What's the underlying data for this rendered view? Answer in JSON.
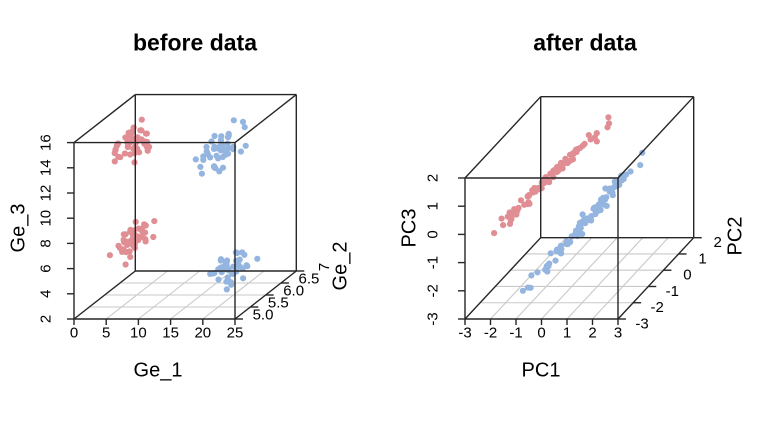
{
  "page": {
    "background": "#ffffff"
  },
  "style": {
    "point_color_group1": "#E08E94",
    "point_color_group2": "#94B5DF",
    "box_color": "#262626",
    "grid_color": "#C9C9C9",
    "text_color": "#000000"
  },
  "chart_data": [
    {
      "id": "before",
      "type": "scatter3d",
      "title": "before data",
      "xlabel": "Ge_1",
      "ylabel": "Ge_2",
      "zlabel": "Ge_3",
      "xlim": [
        0,
        25
      ],
      "ylim": [
        5,
        7
      ],
      "zlim": [
        2,
        16
      ],
      "xticks": {
        "values": [
          0,
          5,
          10,
          15,
          20,
          25
        ],
        "labels": [
          "0",
          "5",
          "10",
          "15",
          "20",
          "25"
        ]
      },
      "yticks": {
        "values": [
          5,
          5.5,
          6,
          6.5,
          7
        ],
        "labels": [
          "5.0",
          "5.5",
          "6.0",
          "6.5",
          "7"
        ]
      },
      "zticks": {
        "values": [
          2,
          4,
          6,
          8,
          10,
          12,
          14,
          16
        ],
        "labels": [
          "2",
          "4",
          "6",
          "8",
          "10",
          "12",
          "14",
          "16"
        ]
      },
      "grid": "floor-only",
      "legend": "none",
      "marker": {
        "shape": "filled-circle",
        "radius_px": 3.1
      },
      "series": [
        {
          "name": "coral-group",
          "color": "#E08E94",
          "clusters": [
            {
              "kind": "blob",
              "n": 45,
              "center": [
                6.8,
                5.5,
                15.0
              ],
              "sd": [
                1.1,
                0.28,
                0.55
              ]
            },
            {
              "kind": "blob",
              "n": 45,
              "center": [
                6.8,
                5.5,
                7.2
              ],
              "sd": [
                1.1,
                0.28,
                0.55
              ]
            }
          ]
        },
        {
          "name": "blue-group",
          "color": "#94B5DF",
          "clusters": [
            {
              "kind": "blob",
              "n": 45,
              "center": [
                20.6,
                5.5,
                14.6
              ],
              "sd": [
                1.2,
                0.3,
                0.6
              ]
            },
            {
              "kind": "blob",
              "n": 45,
              "center": [
                21.5,
                5.5,
                4.9
              ],
              "sd": [
                1.2,
                0.3,
                0.55
              ]
            }
          ]
        }
      ]
    },
    {
      "id": "after",
      "type": "scatter3d",
      "title": "after data",
      "xlabel": "PC1",
      "ylabel": "PC2",
      "zlabel": "PC3",
      "xlim": [
        -3,
        3
      ],
      "ylim": [
        -3,
        2
      ],
      "zlim": [
        -3,
        2
      ],
      "xticks": {
        "values": [
          -3,
          -2,
          -1,
          0,
          1,
          2,
          3
        ],
        "labels": [
          "-3",
          "-2",
          "-1",
          "0",
          "1",
          "2",
          "3"
        ]
      },
      "yticks": {
        "values": [
          -3,
          -2,
          -1,
          0,
          1,
          2
        ],
        "labels": [
          "-3",
          "-2",
          "-1",
          "0",
          "1",
          "2"
        ]
      },
      "zticks": {
        "values": [
          -3,
          -2,
          -1,
          0,
          1,
          2
        ],
        "labels": [
          "-3",
          "-2",
          "-1",
          "0",
          "1",
          "2"
        ]
      },
      "grid": "floor-only",
      "legend": "none",
      "marker": {
        "shape": "filled-circle",
        "radius_px": 3.1
      },
      "series": [
        {
          "name": "coral-group",
          "color": "#E08E94",
          "clusters": [
            {
              "kind": "line",
              "n": 85,
              "center": [
                -1.2,
                -0.5,
                0.55
              ],
              "dir": [
                1.36,
                1.0,
                1.1
              ],
              "t_sd": 0.55,
              "t_max": 1.15,
              "noise": [
                0.1,
                0.07,
                0.08
              ]
            }
          ]
        },
        {
          "name": "blue-group",
          "color": "#94B5DF",
          "clusters": [
            {
              "kind": "line",
              "n": 85,
              "center": [
                0.35,
                -0.35,
                -0.85
              ],
              "dir": [
                1.55,
                1.0,
                1.64
              ],
              "t_sd": 0.55,
              "t_max": 1.15,
              "noise": [
                0.1,
                0.07,
                0.08
              ]
            }
          ]
        }
      ]
    }
  ]
}
